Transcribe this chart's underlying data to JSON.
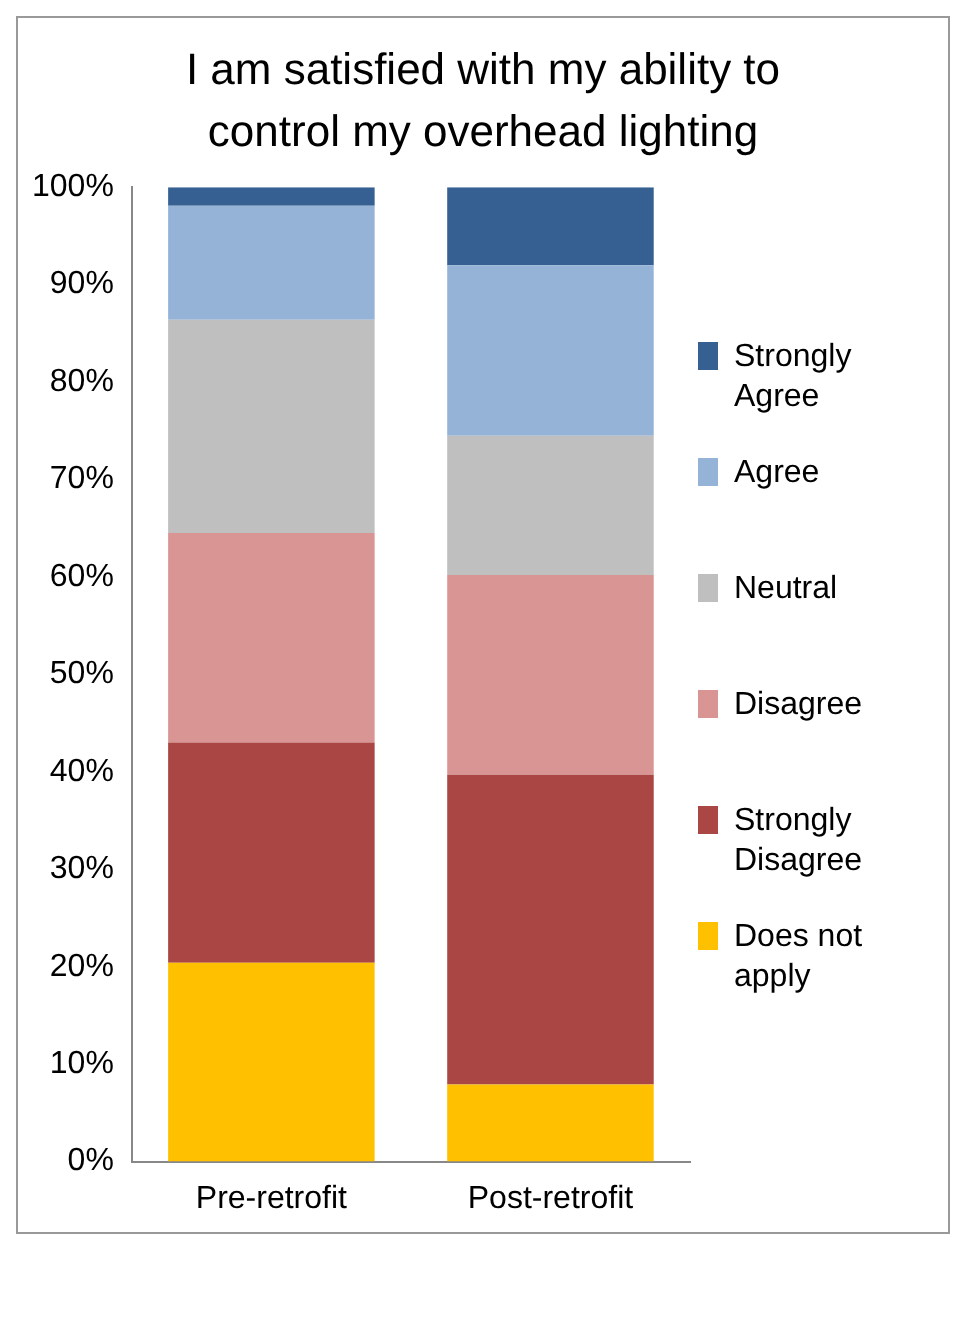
{
  "chart_data": {
    "type": "bar",
    "title": "I am satisfied with my ability to control my overhead lighting",
    "stacked": true,
    "categories": [
      "Pre-retrofit",
      "Post-retrofit"
    ],
    "series": [
      {
        "name": "Does not apply",
        "color": "#ffc000",
        "values": [
          20.4,
          7.9
        ]
      },
      {
        "name": "Strongly Disagree",
        "color": "#aa4644",
        "values": [
          22.6,
          31.8
        ]
      },
      {
        "name": "Disagree",
        "color": "#d99594",
        "values": [
          21.5,
          20.5
        ]
      },
      {
        "name": "Neutral",
        "color": "#bfbfbf",
        "values": [
          21.9,
          14.3
        ]
      },
      {
        "name": "Agree",
        "color": "#95b3d7",
        "values": [
          11.7,
          17.5
        ]
      },
      {
        "name": "Strongly Agree",
        "color": "#366092",
        "values": [
          1.9,
          8.0
        ]
      }
    ],
    "ylim": [
      0,
      100
    ],
    "yticks": [
      {
        "value": 0,
        "label": "0%"
      },
      {
        "value": 10,
        "label": "10%"
      },
      {
        "value": 20,
        "label": "20%"
      },
      {
        "value": 30,
        "label": "30%"
      },
      {
        "value": 40,
        "label": "40%"
      },
      {
        "value": 50,
        "label": "50%"
      },
      {
        "value": 60,
        "label": "60%"
      },
      {
        "value": 70,
        "label": "70%"
      },
      {
        "value": 80,
        "label": "80%"
      },
      {
        "value": 90,
        "label": "90%"
      },
      {
        "value": 100,
        "label": "100%"
      }
    ],
    "grid": false,
    "legend": "right"
  }
}
